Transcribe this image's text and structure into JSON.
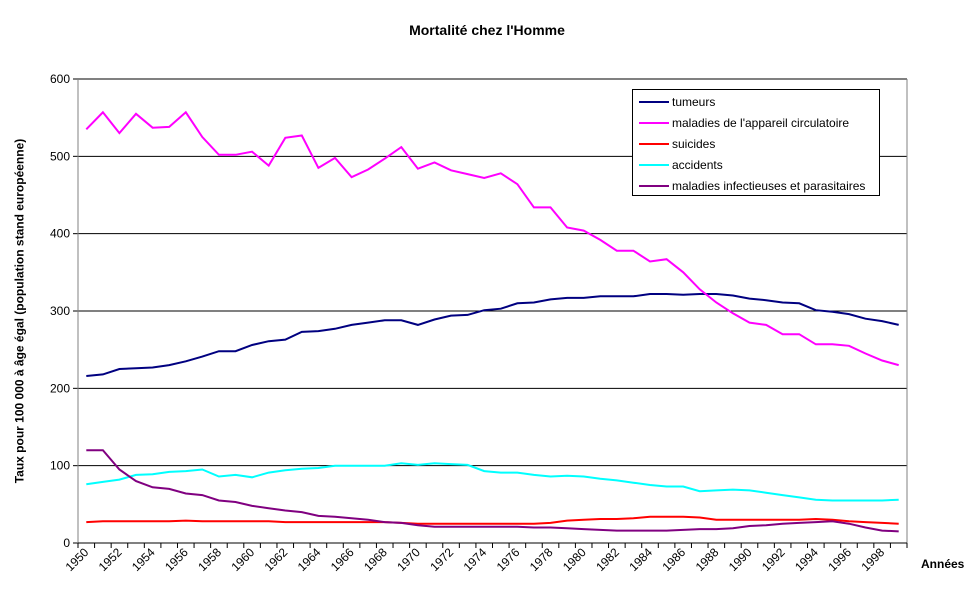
{
  "chart_data": {
    "type": "line",
    "title": "Mortalité chez l'Homme",
    "xlabel": "Années",
    "ylabel": "Taux pour 100 000 à âge égal (population stand européenne)",
    "ylim": [
      0,
      600
    ],
    "yticks": [
      "0",
      "100",
      "200",
      "300",
      "400",
      "500",
      "600"
    ],
    "grid": true,
    "legend_position": "top-right",
    "x": [
      1950,
      1951,
      1952,
      1953,
      1954,
      1955,
      1956,
      1957,
      1958,
      1959,
      1960,
      1961,
      1962,
      1963,
      1964,
      1965,
      1966,
      1967,
      1968,
      1969,
      1970,
      1971,
      1972,
      1973,
      1974,
      1975,
      1976,
      1977,
      1978,
      1979,
      1980,
      1981,
      1982,
      1983,
      1984,
      1985,
      1986,
      1987,
      1988,
      1989,
      1990,
      1991,
      1992,
      1993,
      1994,
      1995,
      1996,
      1997,
      1998,
      1999
    ],
    "xtick_labels": [
      "1950",
      "1952",
      "1954",
      "1956",
      "1958",
      "1960",
      "1962",
      "1964",
      "1966",
      "1968",
      "1970",
      "1972",
      "1974",
      "1976",
      "1978",
      "1980",
      "1982",
      "1984",
      "1986",
      "1988",
      "1990",
      "1992",
      "1994",
      "1996",
      "1998"
    ],
    "series": [
      {
        "name": "tumeurs",
        "color": "#000080",
        "values": [
          216,
          218,
          225,
          226,
          227,
          230,
          235,
          241,
          248,
          248,
          256,
          261,
          263,
          273,
          274,
          277,
          282,
          285,
          288,
          288,
          282,
          289,
          294,
          295,
          301,
          303,
          310,
          311,
          315,
          317,
          317,
          319,
          319,
          319,
          322,
          322,
          321,
          322,
          322,
          320,
          316,
          314,
          311,
          310,
          301,
          299,
          296,
          290,
          287,
          282
        ]
      },
      {
        "name": "maladies de l'appareil circulatoire",
        "color": "#ff00ff",
        "values": [
          535,
          557,
          530,
          555,
          537,
          538,
          557,
          525,
          502,
          502,
          506,
          488,
          524,
          527,
          485,
          498,
          473,
          483,
          497,
          512,
          484,
          492,
          482,
          477,
          472,
          478,
          464,
          434,
          434,
          408,
          404,
          392,
          378,
          378,
          364,
          367,
          350,
          328,
          311,
          297,
          285,
          282,
          270,
          270,
          257,
          257,
          255,
          245,
          236,
          230
        ]
      },
      {
        "name": "suicides",
        "color": "#ff0000",
        "values": [
          27,
          28,
          28,
          28,
          28,
          28,
          29,
          28,
          28,
          28,
          28,
          28,
          27,
          27,
          27,
          27,
          27,
          27,
          27,
          26,
          25,
          25,
          25,
          25,
          25,
          25,
          25,
          25,
          26,
          29,
          30,
          31,
          31,
          32,
          34,
          34,
          34,
          33,
          30,
          30,
          30,
          30,
          30,
          30,
          31,
          30,
          28,
          27,
          26,
          25
        ]
      },
      {
        "name": "accidents",
        "color": "#00ffff",
        "values": [
          76,
          79,
          82,
          88,
          89,
          92,
          93,
          95,
          86,
          88,
          85,
          91,
          94,
          96,
          97,
          100,
          100,
          100,
          100,
          103,
          101,
          103,
          102,
          101,
          93,
          91,
          91,
          88,
          86,
          87,
          86,
          83,
          81,
          78,
          75,
          73,
          73,
          67,
          68,
          69,
          68,
          65,
          62,
          59,
          56,
          55,
          55,
          55,
          55,
          56
        ]
      },
      {
        "name": "maladies infectieuses et parasitaires",
        "color": "#800080",
        "values": [
          120,
          120,
          95,
          80,
          72,
          70,
          64,
          62,
          55,
          53,
          48,
          45,
          42,
          40,
          35,
          34,
          32,
          30,
          27,
          26,
          23,
          21,
          21,
          21,
          21,
          21,
          21,
          20,
          20,
          19,
          18,
          17,
          16,
          16,
          16,
          16,
          17,
          18,
          18,
          19,
          22,
          23,
          25,
          26,
          27,
          28,
          25,
          20,
          16,
          15
        ]
      }
    ]
  }
}
